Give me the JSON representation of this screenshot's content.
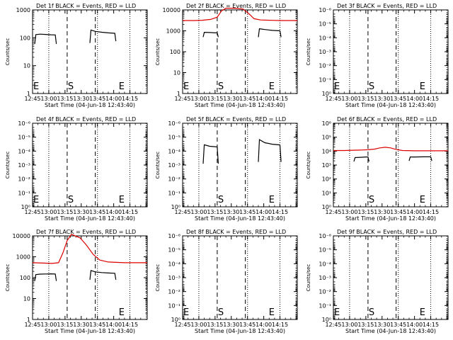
{
  "chart_data": [
    {
      "type": "line",
      "title": "Det 1f BLACK = Events, RED = LLD",
      "xlabel": "Start Time (04-Jun-18 12:43:40)",
      "ylabel": "Counts/sec",
      "scale": "log",
      "ylim": [
        1,
        1000
      ],
      "yticks": [
        {
          "v": 1,
          "label": "1"
        },
        {
          "v": 10,
          "label": "10"
        },
        {
          "v": 100,
          "label": "100"
        },
        {
          "v": 1000,
          "label": "1000"
        }
      ],
      "xticks": [
        "12:45",
        "13:00",
        "13:15",
        "13:30",
        "13:45",
        "14:00",
        "14:15"
      ],
      "markers": [
        {
          "text": "E",
          "x": 0
        },
        {
          "text": "S",
          "x": 32
        },
        {
          "text": "E",
          "x": 79
        }
      ],
      "series": [
        {
          "color": "#000000",
          "segments": [
            [
              [
                2,
                60
              ],
              [
                3,
                130
              ],
              [
                7,
                135
              ],
              [
                12,
                132
              ],
              [
                17,
                128
              ],
              [
                21,
                127
              ],
              [
                22,
                60
              ]
            ],
            [
              [
                53,
                65
              ],
              [
                54,
                190
              ],
              [
                58,
                170
              ],
              [
                64,
                158
              ],
              [
                70,
                150
              ],
              [
                76,
                145
              ],
              [
                77,
                75
              ]
            ]
          ]
        }
      ]
    },
    {
      "type": "line",
      "title": "Det 2f BLACK = Events, RED = LLD",
      "xlabel": "Start Time (04-Jun-18 12:43:40)",
      "ylabel": "Counts/sec",
      "scale": "log",
      "ylim": [
        1,
        10000
      ],
      "yticks": [
        {
          "v": 1,
          "label": "1"
        },
        {
          "v": 10,
          "label": "10"
        },
        {
          "v": 100,
          "label": "100"
        },
        {
          "v": 1000,
          "label": "1000"
        },
        {
          "v": 10000,
          "label": "10000"
        }
      ],
      "xticks": [
        "12:45",
        "13:00",
        "13:15",
        "13:30",
        "13:45",
        "14:00",
        "14:15"
      ],
      "markers": [
        {
          "text": "E",
          "x": 0
        },
        {
          "text": "S",
          "x": 32
        },
        {
          "text": "E",
          "x": 79
        }
      ],
      "series": [
        {
          "color": "#000000",
          "segments": [
            [
              [
                19,
                500
              ],
              [
                20,
                850
              ],
              [
                25,
                830
              ],
              [
                30,
                800
              ],
              [
                32,
                800
              ],
              [
                33,
                500
              ]
            ],
            [
              [
                70,
                500
              ],
              [
                71,
                1250
              ],
              [
                76,
                1150
              ],
              [
                83,
                1050
              ],
              [
                90,
                1000
              ],
              [
                91,
                500
              ]
            ]
          ]
        },
        {
          "color": "#dd0000",
          "segments": [
            [
              [
                0,
                3100
              ],
              [
                10,
                3100
              ],
              [
                18,
                3200
              ],
              [
                26,
                3500
              ],
              [
                32,
                4500
              ],
              [
                36,
                9000
              ],
              [
                40,
                13000
              ],
              [
                48,
                13000
              ],
              [
                56,
                11000
              ],
              [
                62,
                6000
              ],
              [
                66,
                3800
              ],
              [
                72,
                3300
              ],
              [
                90,
                3100
              ],
              [
                106,
                3100
              ]
            ]
          ]
        }
      ]
    },
    {
      "type": "line",
      "title": "Det 3f BLACK = Events, RED = LLD",
      "xlabel": "Start Time (04-Jun-18 12:43:40)",
      "ylabel": "Counts/sec",
      "scale": "log",
      "ylim": [
        1,
        1e-06
      ],
      "yticks": [
        {
          "v": 1,
          "label": "10⁰"
        },
        {
          "v": 0.1,
          "label": "10⁻¹"
        },
        {
          "v": 0.01,
          "label": "10⁻²"
        },
        {
          "v": 0.001,
          "label": "10⁻³"
        },
        {
          "v": 0.0001,
          "label": "10⁻⁴"
        },
        {
          "v": 1e-05,
          "label": "10⁻⁵"
        },
        {
          "v": 1e-06,
          "label": "10⁻⁶"
        }
      ],
      "xticks": [
        "12:45",
        "13:00",
        "13:15",
        "13:30",
        "13:45",
        "14:00",
        "14:15"
      ],
      "markers": [
        {
          "text": "E",
          "x": 0
        },
        {
          "text": "S",
          "x": 32
        },
        {
          "text": "E",
          "x": 79
        }
      ],
      "series": []
    },
    {
      "type": "line",
      "title": "Det 4f BLACK = Events, RED = LLD",
      "xlabel": "Start Time (04-Jun-18 12:43:40)",
      "ylabel": "Counts/sec",
      "scale": "log",
      "ylim": [
        1,
        1e-06
      ],
      "yticks": [
        {
          "v": 1,
          "label": "10⁰"
        },
        {
          "v": 0.1,
          "label": "10⁻¹"
        },
        {
          "v": 0.01,
          "label": "10⁻²"
        },
        {
          "v": 0.001,
          "label": "10⁻³"
        },
        {
          "v": 0.0001,
          "label": "10⁻⁴"
        },
        {
          "v": 1e-05,
          "label": "10⁻⁵"
        },
        {
          "v": 1e-06,
          "label": "10⁻⁶"
        }
      ],
      "xticks": [
        "12:45",
        "13:00",
        "13:15",
        "13:30",
        "13:45",
        "14:00",
        "14:15"
      ],
      "markers": [
        {
          "text": "E",
          "x": 0
        },
        {
          "text": "S",
          "x": 32
        },
        {
          "text": "E",
          "x": 79
        }
      ],
      "series": []
    },
    {
      "type": "line",
      "title": "Det 5f BLACK = Events, RED = LLD",
      "xlabel": "Start Time (04-Jun-18 12:43:40)",
      "ylabel": "Counts/sec",
      "scale": "log",
      "ylim": [
        1,
        1e-06
      ],
      "yticks": [
        {
          "v": 1,
          "label": "10⁰"
        },
        {
          "v": 0.1,
          "label": "10⁻¹"
        },
        {
          "v": 0.01,
          "label": "10⁻²"
        },
        {
          "v": 0.001,
          "label": "10⁻³"
        },
        {
          "v": 0.0001,
          "label": "10⁻⁴"
        },
        {
          "v": 1e-05,
          "label": "10⁻⁵"
        },
        {
          "v": 1e-06,
          "label": "10⁻⁶"
        }
      ],
      "xticks": [
        "12:45",
        "13:00",
        "13:15",
        "13:30",
        "13:45",
        "14:00",
        "14:15"
      ],
      "markers": [
        {
          "text": "S",
          "x": 32
        },
        {
          "text": "E",
          "x": 79
        }
      ],
      "series": [
        {
          "color": "#000000",
          "segments": [
            [
              [
                19,
                0.0008
              ],
              [
                20,
                3.5e-05
              ],
              [
                25,
                4.5e-05
              ],
              [
                30,
                4.8e-05
              ],
              [
                32,
                5e-05
              ],
              [
                33,
                0.0008
              ]
            ],
            [
              [
                70,
                0.0006
              ],
              [
                71,
                1.5e-05
              ],
              [
                76,
                2.5e-05
              ],
              [
                83,
                3.2e-05
              ],
              [
                90,
                3.6e-05
              ],
              [
                91,
                0.0006
              ]
            ]
          ]
        }
      ]
    },
    {
      "type": "line",
      "title": "Det 6f BLACK = Events, RED = LLD",
      "xlabel": "Start Time (04-Jun-18 12:43:40)",
      "ylabel": "Counts/sec",
      "scale": "log",
      "ylim": [
        1,
        1000000.0
      ],
      "yticks": [
        {
          "v": 1,
          "label": "10⁰"
        },
        {
          "v": 10,
          "label": "10¹"
        },
        {
          "v": 100,
          "label": "10²"
        },
        {
          "v": 1000,
          "label": "10³"
        },
        {
          "v": 10000,
          "label": "10⁴"
        },
        {
          "v": 100000,
          "label": "10⁵"
        },
        {
          "v": 1000000,
          "label": "10⁶"
        }
      ],
      "xticks": [
        "12:45",
        "13:00",
        "13:15",
        "13:30",
        "13:45",
        "14:00",
        "14:15"
      ],
      "markers": [
        {
          "text": "S",
          "x": 32
        },
        {
          "text": "E",
          "x": 79
        }
      ],
      "series": [
        {
          "color": "#000000",
          "segments": [
            [
              [
                19,
                1800
              ],
              [
                20,
                3400
              ],
              [
                25,
                3600
              ],
              [
                30,
                3800
              ],
              [
                32,
                3800
              ],
              [
                33,
                1800
              ]
            ],
            [
              [
                70,
                2000
              ],
              [
                71,
                3800
              ],
              [
                76,
                3800
              ],
              [
                83,
                3900
              ],
              [
                90,
                3900
              ],
              [
                91,
                2000
              ]
            ]
          ]
        },
        {
          "color": "#dd0000",
          "segments": [
            [
              [
                0,
                11000
              ],
              [
                10,
                11000
              ],
              [
                18,
                11500
              ],
              [
                26,
                12000
              ],
              [
                32,
                12500
              ],
              [
                38,
                14000
              ],
              [
                43,
                17000
              ],
              [
                48,
                19000
              ],
              [
                53,
                17000
              ],
              [
                58,
                13000
              ],
              [
                64,
                11000
              ],
              [
                75,
                10500
              ],
              [
                90,
                10500
              ],
              [
                106,
                10500
              ]
            ]
          ]
        }
      ]
    },
    {
      "type": "line",
      "title": "Det 7f BLACK = Events, RED = LLD",
      "xlabel": "Start Time (04-Jun-18 12:43:40)",
      "ylabel": "Counts/sec",
      "scale": "log",
      "ylim": [
        1,
        10000
      ],
      "yticks": [
        {
          "v": 1,
          "label": "1"
        },
        {
          "v": 10,
          "label": "10"
        },
        {
          "v": 100,
          "label": "100"
        },
        {
          "v": 1000,
          "label": "1000"
        },
        {
          "v": 10000,
          "label": "10000"
        }
      ],
      "xticks": [
        "12:45",
        "13:00",
        "13:15",
        "13:30",
        "13:45",
        "14:00",
        "14:15"
      ],
      "markers": [
        {
          "text": "E",
          "x": 79
        }
      ],
      "series": [
        {
          "color": "#000000",
          "segments": [
            [
              [
                2,
                70
              ],
              [
                3,
                140
              ],
              [
                7,
                148
              ],
              [
                12,
                150
              ],
              [
                17,
                152
              ],
              [
                21,
                150
              ],
              [
                22,
                70
              ]
            ],
            [
              [
                53,
                80
              ],
              [
                54,
                220
              ],
              [
                58,
                190
              ],
              [
                64,
                175
              ],
              [
                70,
                168
              ],
              [
                76,
                162
              ],
              [
                77,
                80
              ]
            ]
          ]
        },
        {
          "color": "#dd0000",
          "segments": [
            [
              [
                0,
                520
              ],
              [
                10,
                500
              ],
              [
                18,
                480
              ],
              [
                24,
                520
              ],
              [
                28,
                1500
              ],
              [
                32,
                6000
              ],
              [
                36,
                12000
              ],
              [
                44,
                8000
              ],
              [
                50,
                3500
              ],
              [
                56,
                1300
              ],
              [
                62,
                700
              ],
              [
                70,
                560
              ],
              [
                85,
                520
              ],
              [
                106,
                520
              ]
            ]
          ]
        }
      ]
    },
    {
      "type": "line",
      "title": "Det 8f BLACK = Events, RED = LLD",
      "xlabel": "Start Time (04-Jun-18 12:43:40)",
      "ylabel": "Counts/sec",
      "scale": "log",
      "ylim": [
        1,
        1e-06
      ],
      "yticks": [
        {
          "v": 1,
          "label": "10⁰"
        },
        {
          "v": 0.1,
          "label": "10⁻¹"
        },
        {
          "v": 0.01,
          "label": "10⁻²"
        },
        {
          "v": 0.001,
          "label": "10⁻³"
        },
        {
          "v": 0.0001,
          "label": "10⁻⁴"
        },
        {
          "v": 1e-05,
          "label": "10⁻⁵"
        },
        {
          "v": 1e-06,
          "label": "10⁻⁶"
        }
      ],
      "xticks": [
        "12:45",
        "13:00",
        "13:15",
        "13:30",
        "13:45",
        "14:00",
        "14:15"
      ],
      "markers": [
        {
          "text": "E",
          "x": 0
        },
        {
          "text": "S",
          "x": 32
        },
        {
          "text": "E",
          "x": 79
        }
      ],
      "series": []
    },
    {
      "type": "line",
      "title": "Det 9f BLACK = Events, RED = LLD",
      "xlabel": "Start Time (04-Jun-18 12:43:40)",
      "ylabel": "Counts/sec",
      "scale": "log",
      "ylim": [
        1,
        1e-06
      ],
      "yticks": [
        {
          "v": 1,
          "label": "10⁰"
        },
        {
          "v": 0.1,
          "label": "10⁻¹"
        },
        {
          "v": 0.01,
          "label": "10⁻²"
        },
        {
          "v": 0.001,
          "label": "10⁻³"
        },
        {
          "v": 0.0001,
          "label": "10⁻⁴"
        },
        {
          "v": 1e-05,
          "label": "10⁻⁵"
        },
        {
          "v": 1e-06,
          "label": "10⁻⁶"
        }
      ],
      "xticks": [
        "12:45",
        "13:00",
        "13:15",
        "13:30",
        "13:45",
        "14:00",
        "14:15"
      ],
      "markers": [
        {
          "text": "E",
          "x": 0
        },
        {
          "text": "S",
          "x": 32
        },
        {
          "text": "E",
          "x": 79
        }
      ],
      "series": []
    }
  ],
  "x_axis": {
    "unit": "minutes after 12:45",
    "range": [
      0,
      106
    ],
    "ticks": [
      0,
      15,
      30,
      45,
      60,
      75,
      90
    ],
    "dotted_lines": [
      15,
      60,
      90,
      105
    ],
    "dashed_lines": [
      32,
      58
    ]
  }
}
